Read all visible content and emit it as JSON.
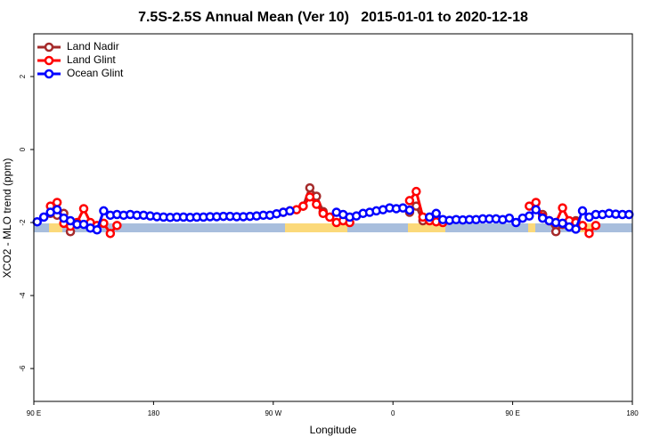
{
  "chart_data": {
    "type": "line",
    "title": "7.5S-2.5S Annual Mean (Ver 10)   2015-01-01 to 2020-12-18",
    "x_label": "Longitude",
    "y_label": "XCO2 - MLO trend (ppm)",
    "xlim": [
      90,
      540
    ],
    "ylim": [
      -6.9,
      3.17
    ],
    "xticks": [
      {
        "value": 90,
        "label": "90 E"
      },
      180,
      {
        "value": 270,
        "label": "90 W"
      },
      {
        "value": 360,
        "label": "0"
      },
      {
        "value": 450,
        "label": "90 E"
      },
      {
        "value": 540,
        "label": "180"
      }
    ],
    "yticks": [
      2,
      0,
      -2,
      -4,
      -6
    ],
    "legend": "top-left",
    "series": [
      {
        "name": "Land Nadir",
        "color": "#a52a2a",
        "x": [
          102.5,
          107.5,
          112.5,
          117.5,
          null,
          292.5,
          297.5,
          302.5,
          307.5,
          null,
          372.5,
          377.5,
          382.5,
          null,
          472.5,
          477.5,
          482.5,
          487.5,
          492.5,
          497.5
        ],
        "values": [
          -1.75,
          -1.8,
          -1.75,
          -2.25,
          null,
          -1.55,
          -1.05,
          -1.28,
          -1.7,
          null,
          -1.72,
          -1.55,
          -1.95,
          null,
          -1.78,
          -1.95,
          -2.25,
          -2.05,
          -2.0,
          -1.95
        ]
      },
      {
        "name": "Land Glint",
        "color": "#ff0000",
        "x": [
          102.5,
          107.5,
          112.5,
          117.5,
          122.5,
          127.5,
          132.5,
          137.5,
          142.5,
          147.5,
          152.5,
          null,
          277.5,
          282.5,
          287.5,
          292.5,
          297.5,
          302.5,
          307.5,
          312.5,
          317.5,
          322.5,
          327.5,
          null,
          372.5,
          377.5,
          382.5,
          387.5,
          392.5,
          397.5,
          null,
          462.5,
          467.5,
          472.5,
          477.5,
          482.5,
          487.5,
          492.5,
          497.5,
          502.5,
          507.5,
          512.5
        ],
        "values": [
          -1.55,
          -1.45,
          -2.02,
          -2.1,
          -2.0,
          -1.62,
          -2.0,
          -2.08,
          -2.02,
          -2.3,
          -2.08,
          null,
          -1.72,
          -1.68,
          -1.65,
          -1.55,
          -1.3,
          -1.5,
          -1.75,
          -1.85,
          -2.0,
          -1.95,
          -2.0,
          null,
          -1.4,
          -1.15,
          -1.85,
          -1.95,
          -1.98,
          -2.0,
          null,
          -1.55,
          -1.45,
          -1.85,
          -1.95,
          -2.0,
          -1.6,
          -1.95,
          -2.0,
          -2.08,
          -2.3,
          -2.08
        ]
      },
      {
        "name": "Ocean Glint",
        "color": "#0000ff",
        "x": [
          92.5,
          97.5,
          102.5,
          107.5,
          112.5,
          117.5,
          122.5,
          127.5,
          132.5,
          137.5,
          142.5,
          147.5,
          152.5,
          157.5,
          162.5,
          167.5,
          172.5,
          177.5,
          182.5,
          187.5,
          192.5,
          197.5,
          202.5,
          207.5,
          212.5,
          217.5,
          222.5,
          227.5,
          232.5,
          237.5,
          242.5,
          247.5,
          252.5,
          257.5,
          262.5,
          267.5,
          272.5,
          277.5,
          282.5,
          287.5,
          292.5,
          297.5,
          302.5,
          307.5,
          312.5,
          317.5,
          322.5,
          327.5,
          332.5,
          337.5,
          342.5,
          347.5,
          352.5,
          357.5,
          362.5,
          367.5,
          372.5,
          377.5,
          382.5,
          387.5,
          392.5,
          397.5,
          402.5,
          407.5,
          412.5,
          417.5,
          422.5,
          427.5,
          432.5,
          437.5,
          442.5,
          447.5,
          452.5,
          457.5,
          462.5,
          467.5,
          472.5,
          477.5,
          482.5,
          487.5,
          492.5,
          497.5,
          502.5,
          507.5,
          512.5,
          517.5,
          522.5,
          527.5,
          532.5,
          537.5
        ],
        "values": [
          -1.98,
          -1.85,
          -1.72,
          -1.65,
          -1.88,
          -1.95,
          -2.05,
          -2.05,
          -2.15,
          -2.2,
          -1.68,
          -1.8,
          -1.78,
          -1.8,
          -1.78,
          -1.8,
          -1.8,
          -1.82,
          -1.84,
          -1.85,
          -1.86,
          -1.85,
          -1.85,
          -1.86,
          -1.85,
          -1.85,
          -1.84,
          -1.84,
          -1.83,
          -1.83,
          -1.84,
          -1.84,
          -1.83,
          -1.82,
          -1.8,
          -1.8,
          -1.76,
          -1.72,
          -1.68,
          null,
          null,
          null,
          null,
          null,
          null,
          -1.72,
          -1.78,
          -1.85,
          -1.82,
          -1.75,
          -1.72,
          -1.68,
          -1.65,
          -1.6,
          -1.62,
          -1.6,
          -1.66,
          null,
          null,
          -1.85,
          -1.75,
          -1.92,
          -1.94,
          -1.92,
          -1.93,
          -1.92,
          -1.92,
          -1.9,
          -1.9,
          -1.9,
          -1.92,
          -1.88,
          -2.0,
          -1.88,
          -1.82,
          -1.65,
          -1.88,
          -1.95,
          -2.0,
          -2.02,
          -2.12,
          -2.18,
          -1.68,
          -1.85,
          -1.78,
          -1.78,
          -1.75,
          -1.77,
          -1.78,
          -1.78
        ]
      }
    ]
  }
}
